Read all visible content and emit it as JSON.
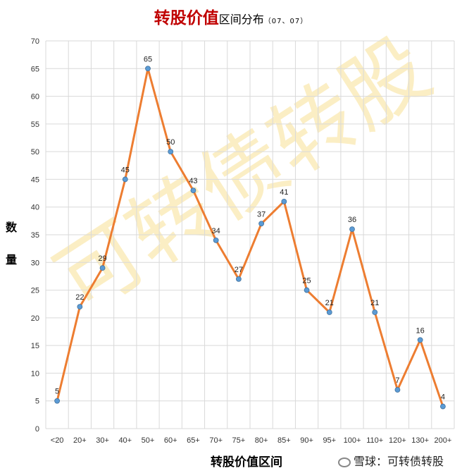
{
  "header": {
    "title_main": "转股价值",
    "title_sub": "区间分布",
    "title_date": "（07、07）"
  },
  "footer": {
    "credit": "雪球：可转债转股"
  },
  "watermark": "可转债转股",
  "chart_data": {
    "type": "line",
    "title": "转股价值区间分布（07、07）",
    "xlabel": "转股价值区间",
    "ylabel": "数量",
    "categories": [
      "<20",
      "20+",
      "30+",
      "40+",
      "50+",
      "60+",
      "65+",
      "70+",
      "75+",
      "80+",
      "85+",
      "90+",
      "95+",
      "100+",
      "110+",
      "120+",
      "130+",
      "200+"
    ],
    "series": [
      {
        "values": [
          5,
          22,
          29,
          45,
          65,
          50,
          43,
          34,
          27,
          37,
          41,
          25,
          21,
          36,
          21,
          7,
          16,
          4
        ]
      }
    ],
    "ylim": [
      0,
      70
    ],
    "yticks": [
      0,
      5,
      10,
      15,
      20,
      25,
      30,
      35,
      40,
      45,
      50,
      55,
      60,
      65,
      70
    ],
    "grid": true,
    "line_color": "#ed7d31",
    "marker_color": "#5b9bd5",
    "grid_color": "#d9d9d9"
  }
}
